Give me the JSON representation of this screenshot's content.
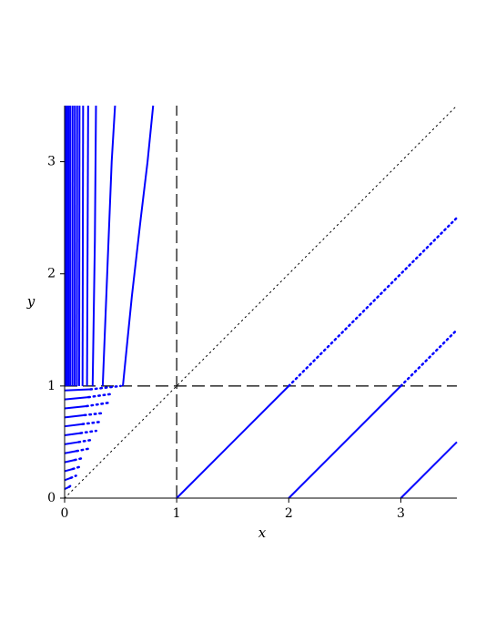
{
  "chart_data": {
    "type": "line",
    "x_label": "x",
    "y_label": "y",
    "xlim": [
      0,
      3.5
    ],
    "ylim": [
      0,
      3.5
    ],
    "xticks": [
      0,
      1,
      2,
      3
    ],
    "yticks": [
      0,
      1,
      2,
      3
    ],
    "series": [
      {
        "color": "#000000",
        "dash": "dotted",
        "width": 1,
        "x": [
          0,
          3.5
        ],
        "values": [
          0,
          3.5
        ]
      },
      {
        "color": "#000000",
        "dash": "dashed",
        "width": 1.2,
        "x": [
          1,
          1
        ],
        "values": [
          0,
          3.5
        ]
      },
      {
        "color": "#000000",
        "dash": "dashed",
        "width": 1.2,
        "x": [
          0,
          3.5
        ],
        "values": [
          1,
          1
        ]
      },
      {
        "color": "#0000ff",
        "dash": "solid",
        "width": 2,
        "x": [
          1,
          2
        ],
        "values": [
          0,
          1
        ]
      },
      {
        "color": "#0000ff",
        "dash": "dotted",
        "width": 2.5,
        "x": [
          2,
          3.5
        ],
        "values": [
          1,
          2.5
        ]
      },
      {
        "color": "#0000ff",
        "dash": "solid",
        "width": 2,
        "x": [
          2,
          3
        ],
        "values": [
          0,
          1
        ]
      },
      {
        "color": "#0000ff",
        "dash": "dotted",
        "width": 2.5,
        "x": [
          3,
          3.5
        ],
        "values": [
          1,
          1.5
        ]
      },
      {
        "color": "#0000ff",
        "dash": "solid",
        "width": 2,
        "x": [
          3,
          3.5
        ],
        "values": [
          0,
          0.5
        ]
      },
      {
        "color": "#0000ff",
        "dash": "solid",
        "width": 2,
        "x": [
          0.52,
          0.6,
          0.68,
          0.74,
          0.79
        ],
        "values": [
          1,
          1.8,
          2.5,
          3.0,
          3.5
        ]
      },
      {
        "color": "#0000ff",
        "dash": "solid",
        "width": 2,
        "x": [
          0.34,
          0.38,
          0.42,
          0.45
        ],
        "values": [
          1,
          2,
          3,
          3.5
        ]
      },
      {
        "color": "#0000ff",
        "dash": "solid",
        "width": 2,
        "x": [
          0.25,
          0.27,
          0.28
        ],
        "values": [
          1,
          2.3,
          3.5
        ]
      },
      {
        "color": "#0000ff",
        "dash": "solid",
        "width": 2,
        "x": [
          0.2,
          0.21
        ],
        "values": [
          1,
          3.5
        ]
      },
      {
        "color": "#0000ff",
        "dash": "solid",
        "width": 2,
        "x": [
          0.16,
          0.165
        ],
        "values": [
          1,
          3.5
        ]
      },
      {
        "color": "#0000ff",
        "dash": "solid",
        "width": 2,
        "x": [
          0.13,
          0.133
        ],
        "values": [
          1,
          3.5
        ]
      },
      {
        "color": "#0000ff",
        "dash": "solid",
        "width": 2,
        "x": [
          0.11,
          0.112
        ],
        "values": [
          1,
          3.5
        ]
      },
      {
        "color": "#0000ff",
        "dash": "solid",
        "width": 2,
        "x": [
          0.09,
          0.091
        ],
        "values": [
          1,
          3.5
        ]
      },
      {
        "color": "#0000ff",
        "dash": "solid",
        "width": 2,
        "x": [
          0.07,
          0.071
        ],
        "values": [
          1,
          3.5
        ]
      },
      {
        "color": "#0000ff",
        "dash": "solid",
        "width": 2,
        "x": [
          0.05,
          0.05
        ],
        "values": [
          1,
          3.5
        ]
      },
      {
        "color": "#0000ff",
        "dash": "solid",
        "width": 2,
        "x": [
          0.035,
          0.035
        ],
        "values": [
          1,
          3.5
        ]
      },
      {
        "color": "#0000ff",
        "dash": "solid",
        "width": 2,
        "x": [
          0.02,
          0.02
        ],
        "values": [
          1,
          3.5
        ]
      },
      {
        "color": "#0000ff",
        "dash": "solid",
        "width": 2,
        "x": [
          0.01,
          0.01
        ],
        "values": [
          1,
          3.5
        ]
      },
      {
        "color": "#0000ff",
        "dash": "solid",
        "width": 2,
        "x": [
          0,
          0.04
        ],
        "values": [
          0.08,
          0.1
        ]
      },
      {
        "color": "#0000ff",
        "dash": "dotted",
        "width": 2.5,
        "x": [
          0.04,
          0.066
        ],
        "values": [
          0.1,
          0.12
        ]
      },
      {
        "color": "#0000ff",
        "dash": "solid",
        "width": 2,
        "x": [
          0,
          0.055
        ],
        "values": [
          0.16,
          0.18
        ]
      },
      {
        "color": "#0000ff",
        "dash": "dotted",
        "width": 2.5,
        "x": [
          0.055,
          0.102
        ],
        "values": [
          0.18,
          0.2
        ]
      },
      {
        "color": "#0000ff",
        "dash": "solid",
        "width": 2,
        "x": [
          0,
          0.073
        ],
        "values": [
          0.24,
          0.26
        ]
      },
      {
        "color": "#0000ff",
        "dash": "dotted",
        "width": 2.5,
        "x": [
          0.073,
          0.138
        ],
        "values": [
          0.26,
          0.28
        ]
      },
      {
        "color": "#0000ff",
        "dash": "solid",
        "width": 2,
        "x": [
          0,
          0.09
        ],
        "values": [
          0.32,
          0.34
        ]
      },
      {
        "color": "#0000ff",
        "dash": "dotted",
        "width": 2.5,
        "x": [
          0.09,
          0.174
        ],
        "values": [
          0.34,
          0.36
        ]
      },
      {
        "color": "#0000ff",
        "dash": "solid",
        "width": 2,
        "x": [
          0,
          0.108
        ],
        "values": [
          0.4,
          0.42
        ]
      },
      {
        "color": "#0000ff",
        "dash": "dotted",
        "width": 2.5,
        "x": [
          0.108,
          0.21
        ],
        "values": [
          0.42,
          0.44
        ]
      },
      {
        "color": "#0000ff",
        "dash": "solid",
        "width": 2,
        "x": [
          0,
          0.126
        ],
        "values": [
          0.48,
          0.5
        ]
      },
      {
        "color": "#0000ff",
        "dash": "dotted",
        "width": 2.5,
        "x": [
          0.126,
          0.246
        ],
        "values": [
          0.5,
          0.52
        ]
      },
      {
        "color": "#0000ff",
        "dash": "solid",
        "width": 2,
        "x": [
          0,
          0.143
        ],
        "values": [
          0.56,
          0.58
        ]
      },
      {
        "color": "#0000ff",
        "dash": "dotted",
        "width": 2.5,
        "x": [
          0.143,
          0.282
        ],
        "values": [
          0.58,
          0.6
        ]
      },
      {
        "color": "#0000ff",
        "dash": "solid",
        "width": 2,
        "x": [
          0,
          0.16
        ],
        "values": [
          0.64,
          0.66
        ]
      },
      {
        "color": "#0000ff",
        "dash": "dotted",
        "width": 2.5,
        "x": [
          0.16,
          0.318
        ],
        "values": [
          0.66,
          0.68
        ]
      },
      {
        "color": "#0000ff",
        "dash": "solid",
        "width": 2,
        "x": [
          0,
          0.178
        ],
        "values": [
          0.72,
          0.74
        ]
      },
      {
        "color": "#0000ff",
        "dash": "dotted",
        "width": 2.5,
        "x": [
          0.178,
          0.354
        ],
        "values": [
          0.74,
          0.76
        ]
      },
      {
        "color": "#0000ff",
        "dash": "solid",
        "width": 2,
        "x": [
          0,
          0.196
        ],
        "values": [
          0.8,
          0.82
        ]
      },
      {
        "color": "#0000ff",
        "dash": "dotted",
        "width": 2.5,
        "x": [
          0.196,
          0.39
        ],
        "values": [
          0.82,
          0.85
        ]
      },
      {
        "color": "#0000ff",
        "dash": "solid",
        "width": 2,
        "x": [
          0,
          0.214
        ],
        "values": [
          0.88,
          0.9
        ]
      },
      {
        "color": "#0000ff",
        "dash": "dotted",
        "width": 2.5,
        "x": [
          0.214,
          0.426
        ],
        "values": [
          0.9,
          0.93
        ]
      },
      {
        "color": "#0000ff",
        "dash": "solid",
        "width": 2,
        "x": [
          0,
          0.231
        ],
        "values": [
          0.96,
          0.97
        ]
      },
      {
        "color": "#0000ff",
        "dash": "dotted",
        "width": 2.5,
        "x": [
          0.231,
          0.5
        ],
        "values": [
          0.97,
          1
        ]
      }
    ]
  }
}
